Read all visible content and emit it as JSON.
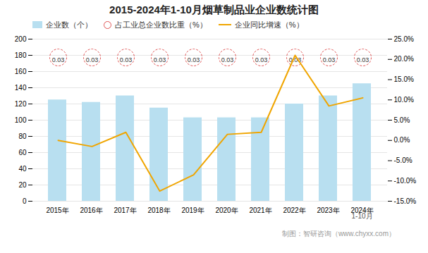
{
  "chart_data": {
    "type": "bar",
    "title": "2015-2024年1-10月烟草制品业企业数统计图",
    "categories": [
      "2015年",
      "2016年",
      "2017年",
      "2018年",
      "2019年",
      "2020年",
      "2021年",
      "2022年",
      "2023年",
      "2024年"
    ],
    "series": [
      {
        "name": "企业数（个）",
        "type": "bar",
        "color": "#b8dff0",
        "values": [
          125,
          122,
          130,
          115,
          103,
          103,
          103,
          120,
          130,
          145
        ]
      },
      {
        "name": "占工业总企业数比重（%）",
        "type": "label",
        "marker": "circle",
        "color": "#e05252",
        "values": [
          0.03,
          0.03,
          0.03,
          0.03,
          0.03,
          0.03,
          0.03,
          0.03,
          0.03,
          0.03
        ]
      },
      {
        "name": "企业同比增速（%）",
        "type": "line",
        "axis": "y2",
        "color": "#f0a500",
        "values": [
          0.0,
          -1.5,
          2.0,
          -12.5,
          -8.5,
          1.5,
          2.0,
          21.0,
          8.5,
          10.5
        ]
      }
    ],
    "ylim": [
      0,
      200
    ],
    "yticks": [
      0,
      20,
      40,
      60,
      80,
      100,
      120,
      140,
      160,
      180,
      200
    ],
    "y2lim": [
      -15.0,
      25.0
    ],
    "y2ticks": [
      {
        "value": -15,
        "label": "-15.0%"
      },
      {
        "value": -10,
        "label": "-10.0%"
      },
      {
        "value": -5,
        "label": "-5.0%"
      },
      {
        "value": 0,
        "label": "0.0%"
      },
      {
        "value": 5,
        "label": "5.0%"
      },
      {
        "value": 10,
        "label": "10.0%"
      },
      {
        "value": 15,
        "label": "15.0%"
      },
      {
        "value": 20,
        "label": "20.0%"
      },
      {
        "value": 25,
        "label": "25.0%"
      }
    ],
    "grid": true,
    "legend": "top",
    "annotations": [
      "1-10月",
      "制图：智研咨询（www.chyxx.com）"
    ]
  }
}
